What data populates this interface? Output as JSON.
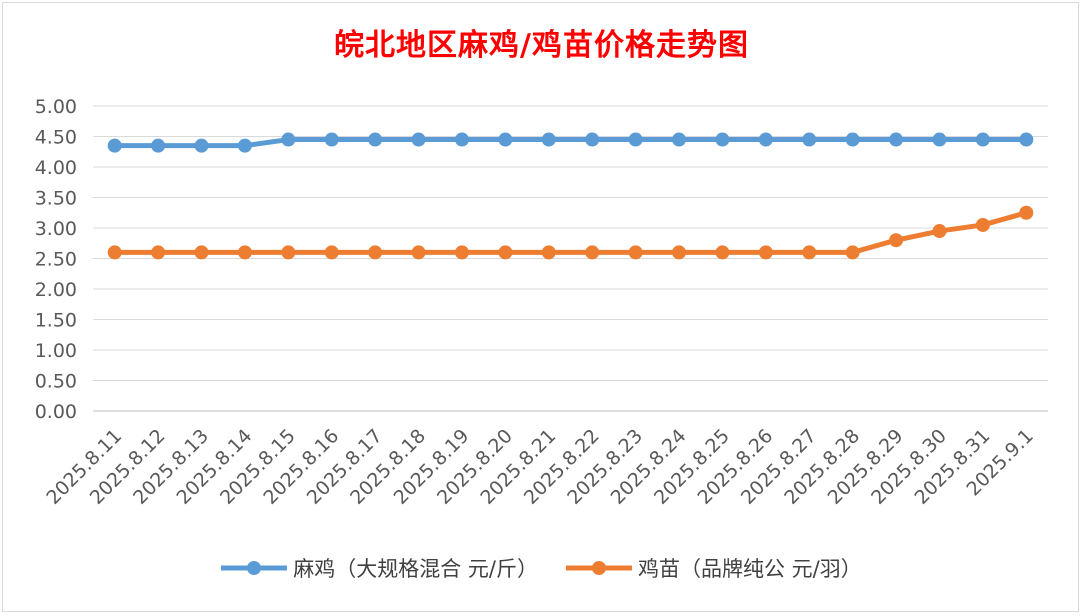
{
  "colors": {
    "series1": "#5b9bd5",
    "series2": "#ed7d31",
    "grid": "#d9d9d9",
    "title": "#ff0000"
  },
  "chart_data": {
    "type": "line",
    "title": "皖北地区麻鸡/鸡苗价格走势图",
    "xlabel": "",
    "ylabel": "",
    "ylim": [
      0,
      5
    ],
    "yticks": [
      "0.00",
      "0.50",
      "1.00",
      "1.50",
      "2.00",
      "2.50",
      "3.00",
      "3.50",
      "4.00",
      "4.50",
      "5.00"
    ],
    "grid": true,
    "legend_position": "bottom",
    "categories": [
      "2025.8.11",
      "2025.8.12",
      "2025.8.13",
      "2025.8.14",
      "2025.8.15",
      "2025.8.16",
      "2025.8.17",
      "2025.8.18",
      "2025.8.19",
      "2025.8.20",
      "2025.8.21",
      "2025.8.22",
      "2025.8.23",
      "2025.8.24",
      "2025.8.25",
      "2025.8.26",
      "2025.8.27",
      "2025.8.28",
      "2025.8.29",
      "2025.8.30",
      "2025.8.31",
      "2025.9.1"
    ],
    "series": [
      {
        "name": "麻鸡（大规格混合 元/斤）",
        "values": [
          4.35,
          4.35,
          4.35,
          4.35,
          4.45,
          4.45,
          4.45,
          4.45,
          4.45,
          4.45,
          4.45,
          4.45,
          4.45,
          4.45,
          4.45,
          4.45,
          4.45,
          4.45,
          4.45,
          4.45,
          4.45,
          4.45
        ]
      },
      {
        "name": "鸡苗（品牌纯公 元/羽）",
        "values": [
          2.6,
          2.6,
          2.6,
          2.6,
          2.6,
          2.6,
          2.6,
          2.6,
          2.6,
          2.6,
          2.6,
          2.6,
          2.6,
          2.6,
          2.6,
          2.6,
          2.6,
          2.6,
          2.8,
          2.95,
          3.05,
          3.25
        ]
      }
    ]
  }
}
